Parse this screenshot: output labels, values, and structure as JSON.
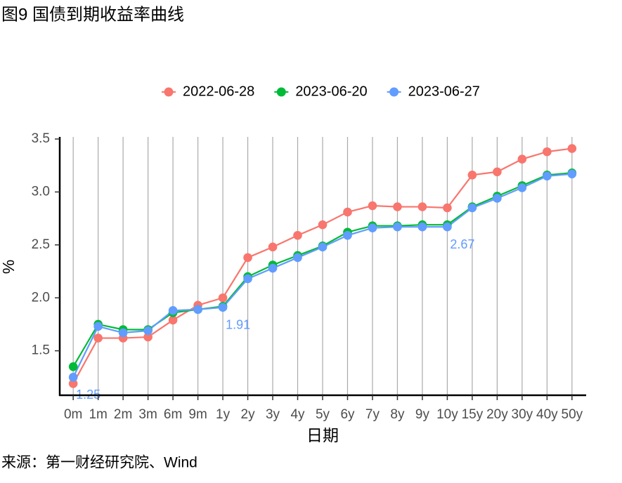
{
  "chart_data": {
    "type": "line",
    "title": "图9 国债到期收益率曲线",
    "source": "来源：第一财经研究院、Wind",
    "x_label": "日期",
    "y_label": "%",
    "categories": [
      "0m",
      "1m",
      "2m",
      "3m",
      "6m",
      "9m",
      "1y",
      "2y",
      "3y",
      "4y",
      "5y",
      "6y",
      "7y",
      "8y",
      "9y",
      "10y",
      "15y",
      "20y",
      "30y",
      "40y",
      "50y"
    ],
    "series": [
      {
        "name": "2022-06-28",
        "color": "#F8766D",
        "values": [
          1.19,
          1.62,
          1.62,
          1.63,
          1.79,
          1.93,
          2.0,
          2.38,
          2.48,
          2.59,
          2.69,
          2.81,
          2.87,
          2.86,
          2.86,
          2.85,
          3.16,
          3.19,
          3.31,
          3.38,
          3.41
        ]
      },
      {
        "name": "2023-06-20",
        "color": "#00BA38",
        "values": [
          1.35,
          1.75,
          1.7,
          1.7,
          1.86,
          1.89,
          1.92,
          2.2,
          2.31,
          2.4,
          2.49,
          2.62,
          2.68,
          2.68,
          2.69,
          2.69,
          2.86,
          2.96,
          3.06,
          3.16,
          3.18
        ]
      },
      {
        "name": "2023-06-27",
        "color": "#619CFF",
        "values": [
          1.25,
          1.73,
          1.67,
          1.69,
          1.88,
          1.89,
          1.91,
          2.18,
          2.28,
          2.38,
          2.48,
          2.59,
          2.66,
          2.67,
          2.67,
          2.67,
          2.85,
          2.94,
          3.04,
          3.15,
          3.17
        ],
        "value_labels": [
          "1.25",
          null,
          null,
          null,
          null,
          null,
          "1.91",
          null,
          null,
          null,
          null,
          null,
          null,
          null,
          null,
          "2.67",
          null,
          null,
          null,
          null,
          null
        ]
      }
    ],
    "ylim": [
      1.08,
      3.52
    ],
    "yticks": [
      1.5,
      {
        "value": 2,
        "label": "2.0"
      },
      2.5,
      {
        "value": 3,
        "label": "3.0"
      },
      3.5
    ],
    "grid": "x",
    "legend": "top"
  }
}
